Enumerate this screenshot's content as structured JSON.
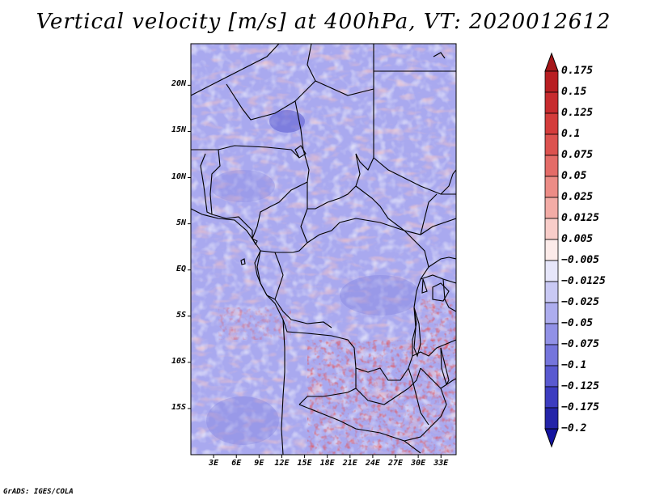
{
  "title": "Vertical velocity [m/s] at 400hPa, VT: 2020012612",
  "footer": "GrADS: IGES/COLA",
  "map": {
    "lat_labels": [
      "20N",
      "15N",
      "10N",
      "5N",
      "EQ",
      "5S",
      "10S",
      "15S"
    ],
    "lat_values": [
      20,
      15,
      10,
      5,
      0,
      -5,
      -10,
      -15
    ],
    "lon_labels": [
      "3E",
      "6E",
      "9E",
      "12E",
      "15E",
      "18E",
      "21E",
      "24E",
      "27E",
      "30E",
      "33E"
    ],
    "lon_values": [
      3,
      6,
      9,
      12,
      15,
      18,
      21,
      24,
      27,
      30,
      33
    ],
    "lat_range": [
      -20,
      24.5
    ],
    "lon_range": [
      0,
      35
    ]
  },
  "colorbar": {
    "labels": [
      "0.175",
      "0.15",
      "0.125",
      "0.1",
      "0.075",
      "0.05",
      "0.025",
      "0.0125",
      "0.005",
      "−0.005",
      "−0.0125",
      "−0.025",
      "−0.05",
      "−0.075",
      "−0.1",
      "−0.125",
      "−0.175",
      "−0.2"
    ],
    "colors": [
      "#a51619",
      "#b81e22",
      "#c72b2e",
      "#d43c3b",
      "#dc524f",
      "#e46c68",
      "#ec8c86",
      "#f3aca6",
      "#f8cdc9",
      "#fcebe9",
      "#e6e6fa",
      "#c9c9f4",
      "#adadee",
      "#9191e6",
      "#7575dc",
      "#5959d0",
      "#3c3cc0",
      "#2424a8",
      "#1414a0"
    ]
  }
}
